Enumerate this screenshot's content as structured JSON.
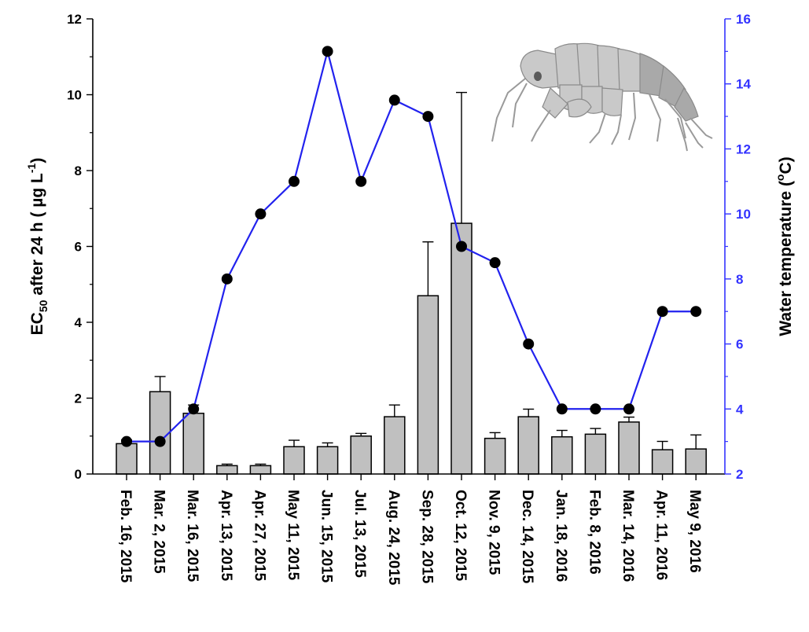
{
  "chart_data": {
    "type": "bar+line",
    "categories": [
      "Feb. 16, 2015",
      "Mar. 2, 2015",
      "Mar. 16, 2015",
      "Apr. 13, 2015",
      "Apr. 27, 2015",
      "May 11, 2015",
      "Jun. 15, 2015",
      "Jul. 13, 2015",
      "Aug. 24, 2015",
      "Sep. 28, 2015",
      "Oct. 12, 2015",
      "Nov. 9, 2015",
      "Dec. 14, 2015",
      "Jan. 18, 2016",
      "Feb. 8, 2016",
      "Mar. 14, 2016",
      "Apr. 11, 2016",
      "May 9, 2016"
    ],
    "bars": {
      "axis": "left",
      "values": [
        0.8,
        2.17,
        1.6,
        0.22,
        0.22,
        0.72,
        0.72,
        1.0,
        1.51,
        4.7,
        6.61,
        0.94,
        1.51,
        0.98,
        1.05,
        1.37,
        0.64,
        0.66
      ],
      "errors": [
        0.1,
        0.4,
        0.22,
        0.04,
        0.04,
        0.17,
        0.1,
        0.07,
        0.31,
        1.42,
        3.45,
        0.15,
        0.2,
        0.17,
        0.15,
        0.13,
        0.22,
        0.37
      ],
      "color": "#c0c0c0"
    },
    "line": {
      "axis": "right",
      "values": [
        3,
        3,
        4,
        8,
        10,
        11,
        15,
        11,
        13.5,
        13,
        9,
        8.5,
        6,
        4,
        4,
        4,
        7,
        7
      ],
      "color": "#2222ee"
    },
    "y_left": {
      "label_main": "EC",
      "label_sub": "50",
      "label_rest": " after 24 h ( µg L",
      "label_sup": "-1",
      "label_end": ")",
      "min": 0,
      "max": 12,
      "ticks": [
        "0",
        "2",
        "4",
        "6",
        "8",
        "10",
        "12"
      ]
    },
    "y_right": {
      "label_main": "Water temperature (",
      "label_sup": "o",
      "label_end": "C)",
      "min": 2,
      "max": 16,
      "ticks": [
        "2",
        "4",
        "6",
        "8",
        "10",
        "12",
        "14",
        "16"
      ],
      "color": "#3333ff"
    },
    "grid": false,
    "legend": "none",
    "inset_image": "amphipod-illustration"
  }
}
